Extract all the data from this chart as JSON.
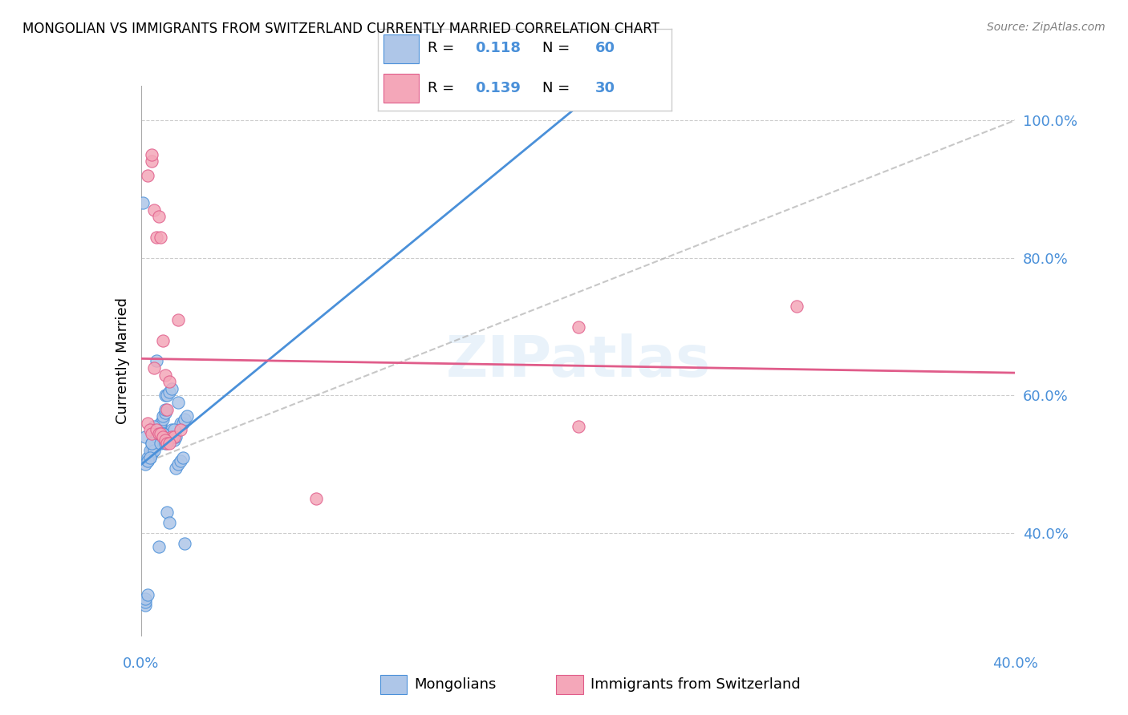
{
  "title": "MONGOLIAN VS IMMIGRANTS FROM SWITZERLAND CURRENTLY MARRIED CORRELATION CHART",
  "source": "Source: ZipAtlas.com",
  "ylabel": "Currently Married",
  "ylabel_right_ticks": [
    "40.0%",
    "60.0%",
    "80.0%",
    "100.0%"
  ],
  "ylabel_right_values": [
    0.4,
    0.6,
    0.8,
    1.0
  ],
  "xlim": [
    0.0,
    0.4
  ],
  "ylim": [
    0.25,
    1.05
  ],
  "mongolian_color": "#aec6e8",
  "swiss_color": "#f4a7b9",
  "mongolian_line_color": "#4a90d9",
  "swiss_line_color": "#e05c8a",
  "trend_line_color": "#b0b0b0",
  "watermark": "ZIPatlas",
  "mongolian_x": [
    0.002,
    0.002,
    0.003,
    0.004,
    0.005,
    0.005,
    0.006,
    0.007,
    0.008,
    0.008,
    0.009,
    0.009,
    0.01,
    0.01,
    0.011,
    0.011,
    0.012,
    0.013,
    0.014,
    0.015,
    0.016,
    0.017,
    0.018,
    0.019,
    0.02,
    0.021,
    0.001,
    0.002,
    0.003,
    0.004,
    0.005,
    0.006,
    0.007,
    0.008,
    0.009,
    0.01,
    0.011,
    0.012,
    0.013,
    0.014,
    0.015,
    0.016,
    0.017,
    0.018,
    0.019,
    0.02,
    0.002,
    0.003,
    0.004,
    0.005,
    0.006,
    0.007,
    0.008,
    0.009,
    0.01,
    0.011,
    0.012,
    0.013,
    0.002,
    0.003
  ],
  "mongolian_y": [
    0.295,
    0.3,
    0.505,
    0.51,
    0.515,
    0.52,
    0.525,
    0.53,
    0.545,
    0.55,
    0.555,
    0.56,
    0.565,
    0.57,
    0.575,
    0.58,
    0.54,
    0.545,
    0.55,
    0.535,
    0.54,
    0.59,
    0.56,
    0.56,
    0.565,
    0.57,
    0.88,
    0.54,
    0.51,
    0.52,
    0.53,
    0.52,
    0.54,
    0.545,
    0.54,
    0.545,
    0.6,
    0.6,
    0.605,
    0.61,
    0.55,
    0.495,
    0.5,
    0.505,
    0.51,
    0.385,
    0.5,
    0.505,
    0.51,
    0.53,
    0.555,
    0.65,
    0.38,
    0.53,
    0.545,
    0.53,
    0.43,
    0.415,
    0.305,
    0.31
  ],
  "swiss_x": [
    0.003,
    0.005,
    0.005,
    0.006,
    0.007,
    0.008,
    0.009,
    0.01,
    0.011,
    0.012,
    0.013,
    0.014,
    0.015,
    0.017,
    0.018,
    0.2,
    0.003,
    0.004,
    0.005,
    0.006,
    0.007,
    0.008,
    0.009,
    0.01,
    0.011,
    0.012,
    0.013,
    0.08,
    0.3,
    0.2
  ],
  "swiss_y": [
    0.92,
    0.94,
    0.95,
    0.87,
    0.83,
    0.86,
    0.83,
    0.68,
    0.63,
    0.58,
    0.62,
    0.54,
    0.54,
    0.71,
    0.55,
    0.7,
    0.56,
    0.55,
    0.545,
    0.64,
    0.55,
    0.545,
    0.545,
    0.54,
    0.535,
    0.53,
    0.53,
    0.45,
    0.73,
    0.555
  ]
}
